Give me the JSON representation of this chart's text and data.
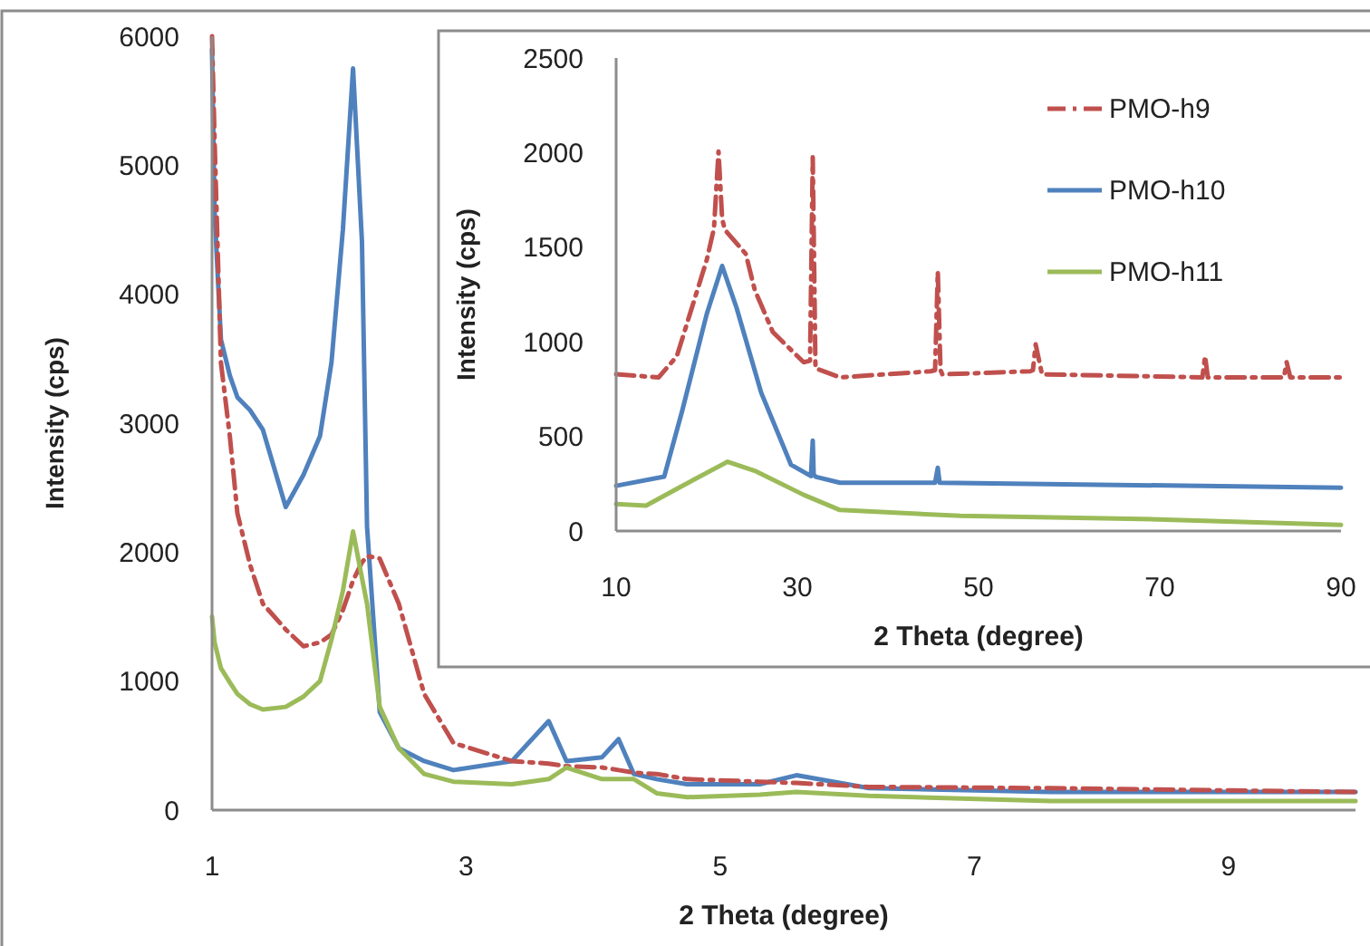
{
  "chart_data": [
    {
      "type": "line",
      "xlabel": "2 Theta (degree)",
      "ylabel": "Intensity (cps)",
      "xlim": [
        1,
        10
      ],
      "xticks": [
        1,
        3,
        5,
        7,
        9
      ],
      "ylim": [
        0,
        6000
      ],
      "yticks": [
        0,
        1000,
        2000,
        3000,
        4000,
        5000,
        6000
      ],
      "grid": false,
      "legend": false,
      "x": [
        1,
        1.02,
        1.07,
        1.14,
        1.2,
        1.3,
        1.4,
        1.58,
        1.72,
        1.85,
        1.94,
        2.03,
        2.11,
        2.18,
        2.22,
        2.32,
        2.47,
        2.67,
        2.9,
        3.36,
        3.65,
        3.79,
        4.07,
        4.2,
        4.32,
        4.5,
        4.74,
        5.31,
        5.6,
        6.17,
        7.6,
        10
      ],
      "series": [
        {
          "color": "#4f81bd",
          "line_style": "solid",
          "values": [
            5900,
            4640,
            3650,
            3370,
            3200,
            3100,
            2950,
            2350,
            2600,
            2900,
            3470,
            4500,
            5750,
            4410,
            2200,
            760,
            480,
            380,
            310,
            380,
            690,
            380,
            410,
            550,
            280,
            240,
            200,
            200,
            270,
            170,
            140,
            140
          ]
        },
        {
          "color": "#c0504d",
          "line_style": "dashed",
          "values": [
            6000,
            5200,
            3470,
            2900,
            2300,
            1900,
            1600,
            1400,
            1270,
            1300,
            1360,
            1550,
            1780,
            1920,
            1970,
            1950,
            1600,
            900,
            520,
            380,
            360,
            340,
            330,
            310,
            290,
            280,
            240,
            220,
            210,
            180,
            170,
            140
          ]
        },
        {
          "color": "#9bbb59",
          "line_style": "solid",
          "values": [
            1500,
            1300,
            1100,
            990,
            900,
            820,
            780,
            800,
            880,
            1000,
            1320,
            1700,
            2160,
            1800,
            1600,
            800,
            480,
            280,
            220,
            200,
            240,
            330,
            240,
            240,
            240,
            130,
            100,
            120,
            140,
            110,
            70,
            70
          ]
        }
      ]
    },
    {
      "type": "line",
      "xlabel": "2 Theta (degree)",
      "ylabel": "Intensity (cps)",
      "xlim": [
        10,
        90
      ],
      "xticks": [
        10,
        30,
        50,
        70,
        90
      ],
      "ylim": [
        0,
        2500
      ],
      "yticks": [
        0,
        500,
        1000,
        1500,
        2000,
        2500
      ],
      "grid": false,
      "legend": "top right",
      "series": [
        {
          "name": "PMO-h9",
          "color": "#c0504d",
          "line_style": "dashed",
          "x": [
            10,
            14.7,
            16.7,
            20,
            20.8,
            21.3,
            21.7,
            22,
            24.3,
            25.3,
            27.3,
            30.7,
            31.4,
            31.7,
            32,
            34.7,
            44.7,
            45.2,
            45.5,
            45.8,
            46,
            55.7,
            56,
            56.3,
            57,
            74.7,
            75,
            75.3,
            83.7,
            84,
            84.4,
            90
          ],
          "values": [
            828,
            812,
            924,
            1433,
            1600,
            2006,
            1650,
            1592,
            1465,
            1274,
            1051,
            892,
            900,
            1975,
            860,
            812,
            844,
            850,
            1370,
            850,
            828,
            844,
            850,
            987,
            828,
            812,
            924,
            812,
            812,
            892,
            812,
            812
          ]
        },
        {
          "name": "PMO-h10",
          "color": "#4f81bd",
          "line_style": "solid",
          "x": [
            10,
            15.3,
            17.3,
            20,
            21.7,
            23.3,
            26,
            29.3,
            31.5,
            31.7,
            31.8,
            32,
            34.7,
            45.2,
            45.5,
            45.7,
            90
          ],
          "values": [
            239,
            287,
            637,
            1147,
            1401,
            1178,
            732,
            350,
            290,
            478,
            300,
            287,
            255,
            255,
            334,
            255,
            229
          ]
        },
        {
          "name": "PMO-h11",
          "color": "#9bbb59",
          "line_style": "solid",
          "x": [
            10,
            13.3,
            16.7,
            22.3,
            25.3,
            30.7,
            34.7,
            48,
            68,
            90
          ],
          "values": [
            143,
            134,
            223,
            366,
            318,
            191,
            111,
            80,
            64,
            32
          ]
        }
      ]
    }
  ]
}
